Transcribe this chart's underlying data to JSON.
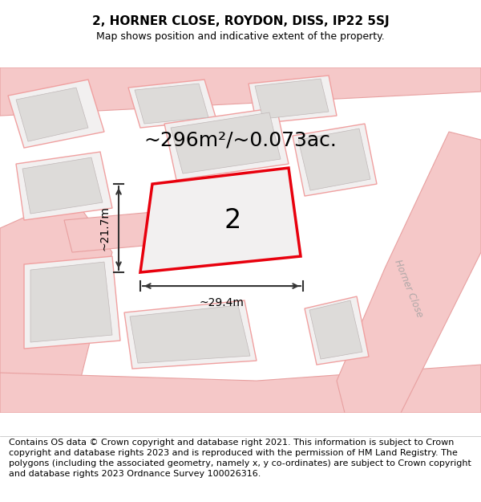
{
  "title_line1": "2, HORNER CLOSE, ROYDON, DISS, IP22 5SJ",
  "title_line2": "Map shows position and indicative extent of the property.",
  "area_text": "~296m²/~0.073ac.",
  "label_number": "2",
  "dim_width": "~29.4m",
  "dim_height": "~21.7m",
  "road_label": "Horner Close",
  "footer_text": "Contains OS data © Crown copyright and database right 2021. This information is subject to Crown copyright and database rights 2023 and is reproduced with the permission of HM Land Registry. The polygons (including the associated geometry, namely x, y co-ordinates) are subject to Crown copyright and database rights 2023 Ordnance Survey 100026316.",
  "bg_color": "#ffffff",
  "map_bg": "#f2f0f0",
  "plot_fill": "#f2f0f0",
  "plot_outline": "#e8000d",
  "building_fill": "#dddbd9",
  "parcel_fill": "#f2f0f0",
  "road_fill": "#f5c8c8",
  "road_edge": "#e8a0a0",
  "parcel_edge": "#f0a0a0",
  "title_fontsize": 11,
  "subtitle_fontsize": 9,
  "area_fontsize": 18,
  "label_fontsize": 24,
  "dim_fontsize": 10,
  "footer_fontsize": 8
}
